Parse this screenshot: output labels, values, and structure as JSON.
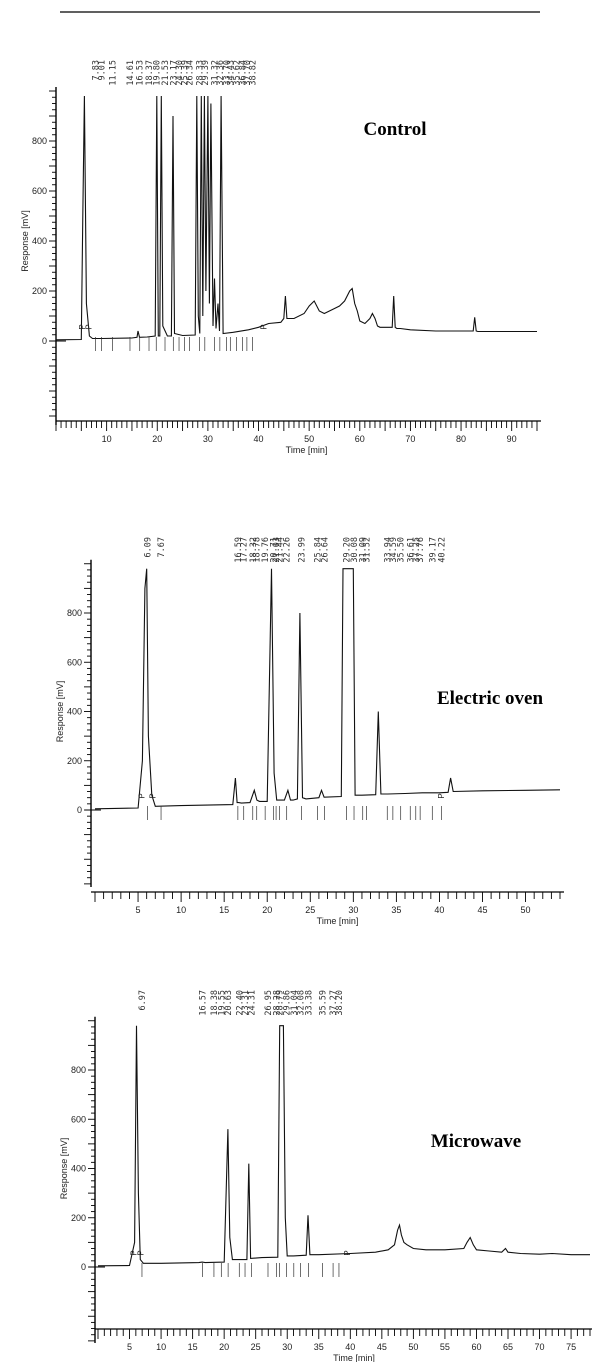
{
  "chart_data": [
    {
      "type": "line",
      "title": "Control",
      "xlabel": "Time [min]",
      "ylabel": "Response [mV]",
      "xlim": [
        0,
        95
      ],
      "ylim": [
        -350,
        1000
      ],
      "x_ticks": [
        10,
        20,
        30,
        40,
        50,
        60,
        70,
        80,
        90
      ],
      "y_ticks": [
        0,
        200,
        400,
        600,
        800
      ],
      "peak_labels": [
        "7.83",
        "9.01",
        "11.15",
        "14.61",
        "16.53",
        "18.37",
        "19.80",
        "21.53",
        "23.17",
        "24.30",
        "25.39",
        "26.34",
        "28.33",
        "29.39",
        "31.32",
        "32.36",
        "33.70",
        "34.43",
        "35.62",
        "36.84",
        "37.70",
        "38.82"
      ],
      "markers": [
        "P",
        "P",
        "P"
      ],
      "series": [
        {
          "x": [
            0,
            5,
            5.3,
            5.6,
            6.0,
            6.6,
            7.2,
            9,
            15,
            16,
            16.2,
            16.5,
            18,
            19.6,
            19.9,
            20.2,
            20.5,
            20.8,
            21.1,
            22,
            22.8,
            23.1,
            23.4,
            25,
            27.5,
            27.8,
            28.1,
            28.4,
            28.7,
            29.0,
            29.3,
            29.6,
            30.0,
            30.3,
            30.6,
            31.0,
            31.3,
            31.6,
            32.0,
            32.3,
            32.6,
            33,
            35,
            38,
            40,
            42,
            44.4,
            45,
            45.3,
            45.6,
            47,
            49,
            50,
            51,
            52,
            53,
            55,
            56,
            57,
            58,
            58.5,
            59,
            59.5,
            60,
            61,
            62,
            62.5,
            63,
            63.5,
            64,
            65,
            66.4,
            66.7,
            67,
            67.3,
            68,
            70,
            75,
            80,
            82.4,
            82.7,
            83,
            83.3,
            85,
            90,
            95
          ],
          "y": [
            5,
            6,
            500,
            980,
            150,
            20,
            10,
            10,
            12,
            15,
            40,
            15,
            16,
            20,
            980,
            20,
            20,
            980,
            60,
            20,
            20,
            900,
            30,
            22,
            24,
            980,
            100,
            30,
            980,
            100,
            980,
            200,
            980,
            150,
            950,
            60,
            250,
            50,
            150,
            40,
            980,
            30,
            35,
            45,
            55,
            70,
            75,
            90,
            180,
            90,
            90,
            110,
            140,
            160,
            120,
            110,
            130,
            140,
            160,
            200,
            210,
            150,
            120,
            80,
            70,
            90,
            110,
            90,
            60,
            55,
            55,
            55,
            180,
            55,
            50,
            50,
            45,
            40,
            40,
            40,
            95,
            40,
            38,
            38,
            38,
            38
          ]
        }
      ]
    },
    {
      "type": "line",
      "title": "Electric oven",
      "xlabel": "Time [min]",
      "ylabel": "Response [mV]",
      "xlim": [
        0,
        54
      ],
      "ylim": [
        -350,
        1000
      ],
      "x_ticks": [
        5,
        10,
        15,
        20,
        25,
        30,
        35,
        40,
        45,
        50
      ],
      "y_ticks": [
        0,
        200,
        400,
        600,
        800
      ],
      "peak_labels": [
        "6.09",
        "7.67",
        "16.59",
        "17.27",
        "18.32",
        "18.78",
        "19.76",
        "20.71",
        "21.03",
        "21.44",
        "22.26",
        "23.99",
        "25.84",
        "26.64",
        "29.20",
        "30.08",
        "31.09",
        "31.52",
        "33.94",
        "34.59",
        "35.50",
        "36.61",
        "37.25",
        "37.76",
        "39.17",
        "40.22"
      ],
      "markers": [
        "P",
        "P",
        "P"
      ],
      "series": [
        {
          "x": [
            0,
            5,
            5.5,
            5.8,
            6.0,
            6.2,
            6.6,
            7.0,
            10,
            16,
            16.3,
            16.5,
            16.7,
            17,
            18,
            18.5,
            18.8,
            19.1,
            20,
            20.5,
            20.8,
            21.1,
            21.5,
            22,
            22.4,
            22.7,
            23,
            23.5,
            23.8,
            24.1,
            24.5,
            26,
            26.3,
            26.6,
            28.6,
            28.8,
            29.0,
            29.8,
            30.0,
            30.2,
            31,
            32.6,
            32.9,
            33.2,
            34,
            36,
            38,
            40,
            41,
            41.3,
            41.6,
            45,
            50,
            54
          ],
          "y": [
            5,
            8,
            200,
            900,
            980,
            300,
            60,
            15,
            18,
            22,
            130,
            30,
            30,
            28,
            30,
            80,
            40,
            35,
            35,
            980,
            150,
            40,
            40,
            40,
            80,
            40,
            40,
            45,
            800,
            50,
            45,
            50,
            80,
            52,
            55,
            980,
            980,
            980,
            980,
            60,
            60,
            62,
            400,
            65,
            65,
            67,
            70,
            70,
            72,
            130,
            75,
            78,
            80,
            82
          ]
        }
      ]
    },
    {
      "type": "line",
      "title": "Microwave",
      "xlabel": "Time [min]",
      "ylabel": "Response [mV]",
      "xlim": [
        0,
        78
      ],
      "ylim": [
        -350,
        1000
      ],
      "x_ticks": [
        5,
        10,
        15,
        20,
        25,
        30,
        35,
        40,
        45,
        50,
        55,
        60,
        65,
        70,
        75
      ],
      "y_ticks": [
        0,
        200,
        400,
        600,
        800
      ],
      "peak_labels": [
        "6.97",
        "16.57",
        "18.38",
        "19.55",
        "20.63",
        "22.40",
        "23.31",
        "24.31",
        "26.95",
        "28.28",
        "28.79",
        "29.86",
        "31.04",
        "32.08",
        "33.38",
        "35.59",
        "37.27",
        "38.20"
      ],
      "markers": [
        "P",
        "P",
        "P"
      ],
      "series": [
        {
          "x": [
            0,
            5,
            5.8,
            6.1,
            6.4,
            6.7,
            7.2,
            10,
            16,
            16.5,
            17,
            20,
            20.6,
            20.9,
            21.3,
            22,
            23.6,
            23.9,
            24.2,
            26,
            28.5,
            28.8,
            29.4,
            29.7,
            30,
            30.5,
            31,
            33,
            33.3,
            33.6,
            35,
            40,
            44,
            46,
            47,
            47.5,
            47.8,
            48.1,
            48.5,
            49,
            50,
            52,
            55,
            58,
            58.5,
            59,
            59.5,
            60,
            62,
            64,
            64.6,
            65,
            67,
            70,
            72,
            75,
            78
          ],
          "y": [
            5,
            6,
            100,
            980,
            300,
            30,
            15,
            15,
            18,
            20,
            18,
            20,
            560,
            120,
            30,
            30,
            30,
            420,
            35,
            38,
            40,
            980,
            980,
            200,
            45,
            45,
            45,
            48,
            210,
            50,
            50,
            55,
            60,
            70,
            90,
            150,
            170,
            130,
            100,
            90,
            75,
            70,
            70,
            75,
            100,
            120,
            90,
            70,
            65,
            60,
            75,
            60,
            55,
            52,
            55,
            50,
            50
          ]
        }
      ]
    }
  ]
}
